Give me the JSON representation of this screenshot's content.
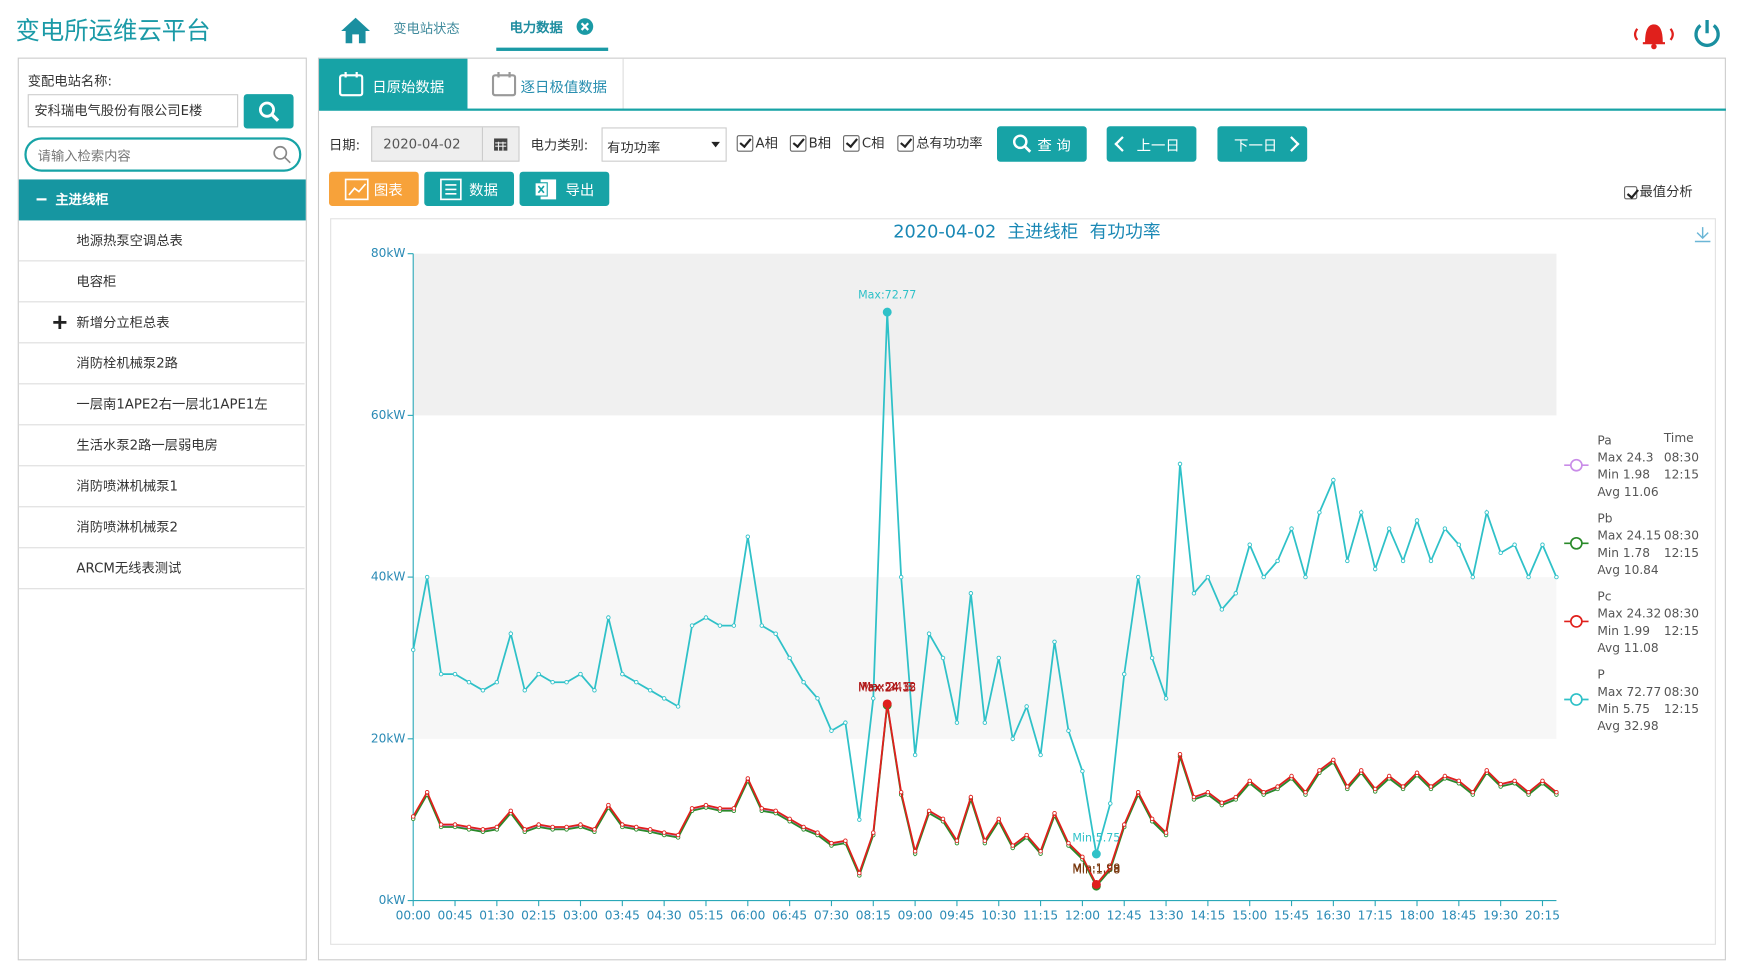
{
  "header": {
    "title": "变电所运维云平台",
    "nav": [
      "变电站状态",
      "电力数据"
    ]
  },
  "sidebar": {
    "station_label": "变配电站名称:",
    "station_value": "安科瑞电气股份有限公司E楼",
    "search_placeholder": "请输入检索内容",
    "tree": [
      "主进线柜",
      "地源热泵空调总表",
      "电容柜",
      "新增分立柜总表",
      "消防栓机械泵2路",
      "一层南1APE2右一层北1APE1左",
      "生活水泵2路一层弱电房",
      "消防喷淋机械泵1",
      "消防喷淋机械泵2",
      "ARCM无线表测试"
    ]
  },
  "tabs": [
    "日原始数据",
    "逐日极值数据"
  ],
  "filters": {
    "date_label": "日期:",
    "date": "2020-04-02",
    "type_label": "电力类别:",
    "type": "有功功率",
    "checks": [
      "A相",
      "B相",
      "C相",
      "总有功功率"
    ],
    "query": "查 询",
    "prev": "上一日",
    "next": "下一日"
  },
  "views": [
    "图表",
    "数据",
    "导出"
  ],
  "extreme_analysis": "最值分析",
  "chart_data": {
    "type": "line",
    "title": "2020-04-02  主进线柜  有功功率",
    "stats_header": "Time",
    "categories": [
      "00:00",
      null,
      null,
      "00:45",
      null,
      null,
      "01:30",
      null,
      null,
      "02:15",
      null,
      null,
      "03:00",
      null,
      null,
      "03:45",
      null,
      null,
      "04:30",
      null,
      null,
      "05:15",
      null,
      null,
      "06:00",
      null,
      null,
      "06:45",
      null,
      null,
      "07:30",
      null,
      null,
      "08:15",
      null,
      null,
      "09:00",
      null,
      null,
      "09:45",
      null,
      null,
      "10:30",
      null,
      null,
      "11:15",
      null,
      null,
      "12:00",
      null,
      null,
      "12:45",
      null,
      null,
      "13:30",
      null,
      null,
      "14:15",
      null,
      null,
      "15:00",
      null,
      null,
      "15:45",
      null,
      null,
      "16:30",
      null,
      null,
      "17:15",
      null,
      null,
      "18:00",
      null,
      null,
      "18:45",
      null,
      null,
      "19:30",
      null,
      null,
      "20:15",
      null
    ],
    "ylim": [
      0,
      80
    ],
    "yticks": [
      {
        "value": 0,
        "label": "0kW"
      },
      {
        "value": 20,
        "label": "20kW"
      },
      {
        "value": 40,
        "label": "40kW"
      },
      {
        "value": 60,
        "label": "60kW"
      },
      {
        "value": 80,
        "label": "80kW"
      }
    ],
    "series": [
      {
        "name": "P",
        "color": "#2fc1c8",
        "max_label": "Max:72.77",
        "min_label": "Min:5.75",
        "stats": {
          "max": "Max 72.77",
          "max_time": "08:30",
          "min": "Min 5.75",
          "min_time": "12:15",
          "avg": "Avg 32.98"
        },
        "values": [
          31,
          40,
          28,
          28,
          27,
          26,
          27,
          33,
          26,
          28,
          27,
          27,
          28,
          26,
          35,
          28,
          27,
          26,
          25,
          24,
          34,
          35,
          34,
          34,
          45,
          34,
          33,
          30,
          27,
          25,
          21,
          22,
          10,
          25,
          72.77,
          40,
          18,
          33,
          30,
          22,
          38,
          22,
          30,
          20,
          24,
          18,
          32,
          21,
          16,
          5.75,
          12,
          28,
          40,
          30,
          25,
          54,
          38,
          40,
          36,
          38,
          44,
          40,
          42,
          46,
          40,
          48,
          52,
          42,
          48,
          41,
          46,
          42,
          47,
          42,
          46,
          44,
          40,
          48,
          43,
          44,
          40,
          44,
          40
        ]
      },
      {
        "name": "Pa",
        "color": "#c98ce8",
        "max_label": "Max:24.3",
        "min_label": "Min:1.98",
        "stats": {
          "max": "Max 24.3",
          "max_time": "08:30",
          "min": "Min 1.98",
          "min_time": "12:15",
          "avg": "Avg 11.06"
        },
        "values": [
          10.3,
          13.3,
          9.3,
          9.3,
          9,
          8.7,
          9,
          11,
          8.7,
          9.3,
          9,
          9,
          9.3,
          8.7,
          11.7,
          9.3,
          9,
          8.7,
          8.3,
          8,
          11.3,
          11.7,
          11.3,
          11.3,
          15,
          11.3,
          11,
          10,
          9,
          8.3,
          7,
          7.3,
          3.3,
          8.3,
          24.3,
          13.3,
          6,
          11,
          10,
          7.3,
          12.7,
          7.3,
          10,
          6.7,
          8,
          6,
          10.7,
          7,
          5.3,
          1.98,
          4,
          9.3,
          13.3,
          10,
          8.3,
          18,
          12.7,
          13.3,
          12,
          12.7,
          14.7,
          13.3,
          14,
          15.3,
          13.3,
          16,
          17.3,
          14,
          16,
          13.7,
          15.3,
          14,
          15.7,
          14,
          15.3,
          14.7,
          13.3,
          16,
          14.3,
          14.7,
          13.3,
          14.7,
          13.3
        ]
      },
      {
        "name": "Pb",
        "color": "#2a8a2a",
        "max_label": "Max:24.15",
        "min_label": "Min:1.78",
        "stats": {
          "max": "Max 24.15",
          "max_time": "08:30",
          "min": "Min 1.78",
          "min_time": "12:15",
          "avg": "Avg 10.84"
        },
        "values": [
          10.1,
          13.1,
          9.1,
          9.1,
          8.8,
          8.5,
          8.8,
          10.8,
          8.5,
          9.1,
          8.8,
          8.8,
          9.1,
          8.5,
          11.5,
          9.1,
          8.8,
          8.5,
          8.1,
          7.8,
          11.1,
          11.5,
          11.1,
          11.1,
          14.8,
          11.1,
          10.8,
          9.8,
          8.8,
          8.1,
          6.8,
          7.1,
          3.1,
          8.1,
          24.15,
          13.1,
          5.8,
          10.8,
          9.8,
          7.1,
          12.5,
          7.1,
          9.8,
          6.5,
          7.8,
          5.8,
          10.5,
          6.8,
          5.1,
          1.78,
          3.8,
          9.1,
          13.1,
          9.8,
          8.1,
          17.8,
          12.5,
          13.1,
          11.8,
          12.5,
          14.5,
          13.1,
          13.8,
          15.1,
          13.1,
          15.8,
          17.1,
          13.8,
          15.8,
          13.5,
          15.1,
          13.8,
          15.5,
          13.8,
          15.1,
          14.5,
          13.1,
          15.8,
          14.1,
          14.5,
          13.1,
          14.5,
          13.1
        ]
      },
      {
        "name": "Pc",
        "color": "#e0201c",
        "max_label": "Max:24.32",
        "min_label": "Min:1.99",
        "stats": {
          "max": "Max 24.32",
          "max_time": "08:30",
          "min": "Min 1.99",
          "min_time": "12:15",
          "avg": "Avg 11.08"
        },
        "values": [
          10.4,
          13.4,
          9.4,
          9.4,
          9.1,
          8.8,
          9.1,
          11.1,
          8.8,
          9.4,
          9.1,
          9.1,
          9.4,
          8.8,
          11.8,
          9.4,
          9.1,
          8.8,
          8.4,
          8.1,
          11.4,
          11.8,
          11.4,
          11.4,
          15.1,
          11.4,
          11.1,
          10.1,
          9.1,
          8.4,
          7.1,
          7.4,
          3.4,
          8.4,
          24.32,
          13.4,
          6.1,
          11.1,
          10.1,
          7.4,
          12.8,
          7.4,
          10.1,
          6.8,
          8.1,
          6.1,
          10.8,
          7.1,
          5.4,
          1.99,
          4.1,
          9.4,
          13.4,
          10.1,
          8.4,
          18.1,
          12.8,
          13.4,
          12.1,
          12.8,
          14.8,
          13.4,
          14.1,
          15.4,
          13.4,
          16.1,
          17.4,
          14.1,
          16.1,
          13.8,
          15.4,
          14.1,
          15.8,
          14.1,
          15.4,
          14.8,
          13.4,
          16.1,
          14.4,
          14.8,
          13.4,
          14.8,
          13.4
        ]
      }
    ]
  }
}
